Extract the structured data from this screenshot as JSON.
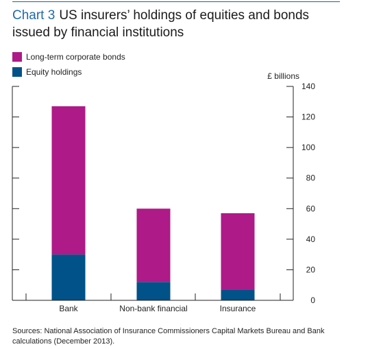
{
  "header": {
    "chart_number": "Chart 3",
    "title": "US insurers’ holdings of equities and bonds issued by financial institutions"
  },
  "colors": {
    "bonds": "#ae1a87",
    "equity": "#005288",
    "axis": "#222222",
    "title_accent": "#1e6aa8"
  },
  "chart_data": {
    "type": "bar",
    "stacked": true,
    "categories": [
      "Bank",
      "Non-bank financial",
      "Insurance"
    ],
    "series": [
      {
        "name": "Equity holdings",
        "values": [
          30,
          12,
          7
        ]
      },
      {
        "name": "Long-term corporate bonds",
        "values": [
          97,
          48,
          50
        ]
      }
    ],
    "ylim": [
      0,
      140
    ],
    "yticks": [
      0,
      20,
      40,
      60,
      80,
      100,
      120,
      140
    ],
    "y_axis_side": "right",
    "unit_label": "£ billions",
    "grid": false,
    "legend_position": "top-left"
  },
  "legend": [
    {
      "label": "Long-term corporate bonds",
      "color_key": "bonds"
    },
    {
      "label": "Equity holdings",
      "color_key": "equity"
    }
  ],
  "sources": "Sources: National Association of Insurance Commissioners Capital Markets Bureau and Bank calculations (December 2013)."
}
